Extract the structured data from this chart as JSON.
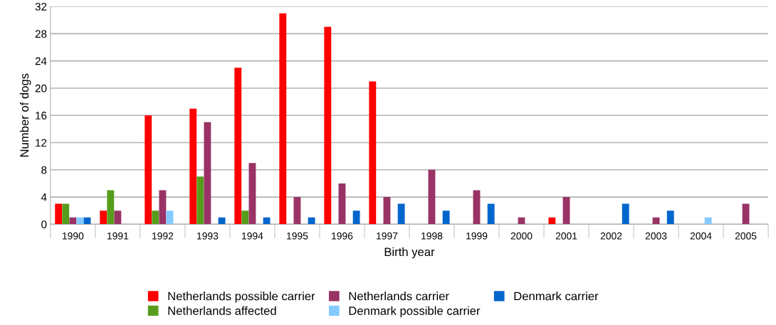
{
  "chart_data": {
    "type": "bar",
    "xlabel": "Birth year",
    "ylabel": "Number of dogs",
    "categories": [
      "1990",
      "1991",
      "1992",
      "1993",
      "1994",
      "1995",
      "1996",
      "1997",
      "1998",
      "1999",
      "2000",
      "2001",
      "2002",
      "2003",
      "2004",
      "2005"
    ],
    "series": [
      {
        "name": "Netherlands possible carrier",
        "color": "#ff0000",
        "values": [
          3,
          2,
          16,
          17,
          23,
          31,
          29,
          21,
          0,
          0,
          0,
          1,
          0,
          0,
          0,
          0
        ]
      },
      {
        "name": "Netherlands affected",
        "color": "#579d1c",
        "values": [
          3,
          5,
          2,
          7,
          2,
          0,
          0,
          0,
          0,
          0,
          0,
          0,
          0,
          0,
          0,
          0
        ]
      },
      {
        "name": "Netherlands carrier",
        "color": "#993366",
        "values": [
          1,
          2,
          5,
          15,
          9,
          4,
          6,
          4,
          8,
          5,
          1,
          4,
          0,
          1,
          0,
          3
        ]
      },
      {
        "name": "Denmark possible carrier",
        "color": "#83caff",
        "values": [
          1,
          0,
          2,
          0,
          0,
          0,
          0,
          0,
          0,
          0,
          0,
          0,
          0,
          0,
          1,
          0
        ]
      },
      {
        "name": "Denmark carrier",
        "color": "#0066cc",
        "values": [
          1,
          0,
          0,
          1,
          1,
          1,
          2,
          3,
          2,
          3,
          0,
          0,
          3,
          2,
          0,
          0
        ]
      }
    ],
    "ylim": [
      0,
      32
    ],
    "yticks": [
      0,
      4,
      8,
      12,
      16,
      20,
      24,
      28,
      32
    ],
    "grid": "y",
    "legend": "bottom"
  }
}
